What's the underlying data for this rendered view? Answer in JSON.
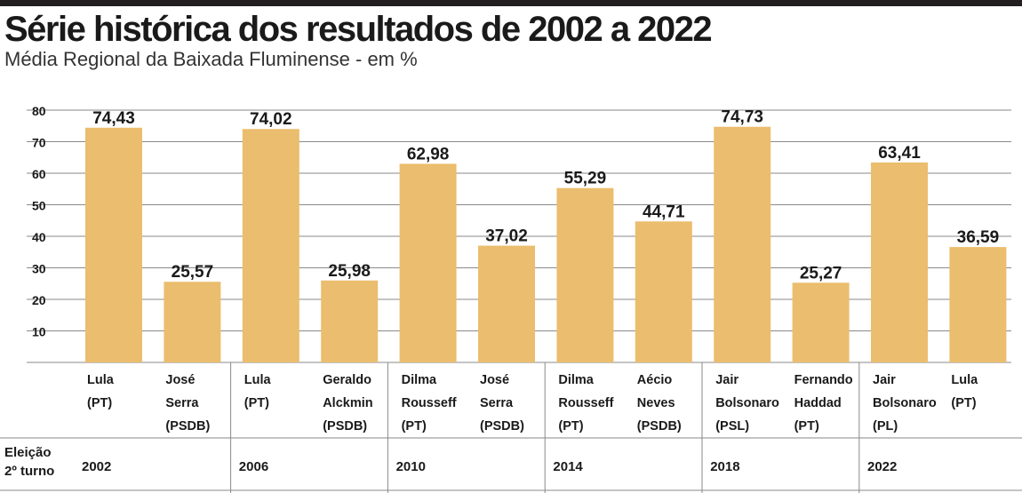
{
  "title": "Série histórica dos resultados de 2002 a 2022",
  "subtitle": "Média Regional da Baixada Fluminense - em %",
  "election_row_label": [
    "Eleição",
    "2º turno"
  ],
  "colors": {
    "bar": "#ebbd6e",
    "grid": "#8a8a8a",
    "text": "#1a1a1a",
    "rule": "#231f20"
  },
  "chart_data": {
    "type": "bar",
    "title": "Série histórica dos resultados de 2002 a 2022",
    "subtitle": "Média Regional da Baixada Fluminense - em %",
    "xlabel": "",
    "ylabel": "",
    "ylim": [
      0,
      80
    ],
    "yticks": [
      10,
      20,
      30,
      40,
      50,
      60,
      70,
      80
    ],
    "grid": true,
    "categories": [
      {
        "lines": [
          "Lula",
          "(PT)"
        ],
        "year": "2002"
      },
      {
        "lines": [
          "José",
          "Serra",
          "(PSDB)"
        ],
        "year": "2002"
      },
      {
        "lines": [
          "Lula",
          "(PT)"
        ],
        "year": "2006"
      },
      {
        "lines": [
          "Geraldo",
          "Alckmin",
          "(PSDB)"
        ],
        "year": "2006"
      },
      {
        "lines": [
          "Dilma",
          "Rousseff",
          "(PT)"
        ],
        "year": "2010"
      },
      {
        "lines": [
          "José",
          "Serra",
          "(PSDB)"
        ],
        "year": "2010"
      },
      {
        "lines": [
          "Dilma",
          "Rousseff",
          "(PT)"
        ],
        "year": "2014"
      },
      {
        "lines": [
          "Aécio",
          "Neves",
          "(PSDB)"
        ],
        "year": "2014"
      },
      {
        "lines": [
          "Jair",
          "Bolsonaro",
          "(PSL)"
        ],
        "year": "2018"
      },
      {
        "lines": [
          "Fernando",
          "Haddad",
          "(PT)"
        ],
        "year": "2018"
      },
      {
        "lines": [
          "Jair",
          "Bolsonaro",
          "(PL)"
        ],
        "year": "2022"
      },
      {
        "lines": [
          "Lula",
          "(PT)"
        ],
        "year": "2022"
      }
    ],
    "values": [
      74.43,
      25.57,
      74.02,
      25.98,
      62.98,
      37.02,
      55.29,
      44.71,
      74.73,
      25.27,
      63.41,
      36.59
    ],
    "value_labels": [
      "74,43",
      "25,57",
      "74,02",
      "25,98",
      "62,98",
      "37,02",
      "55,29",
      "44,71",
      "74,73",
      "25,27",
      "63,41",
      "36,59"
    ],
    "years": [
      "2002",
      "2006",
      "2010",
      "2014",
      "2018",
      "2022"
    ]
  }
}
